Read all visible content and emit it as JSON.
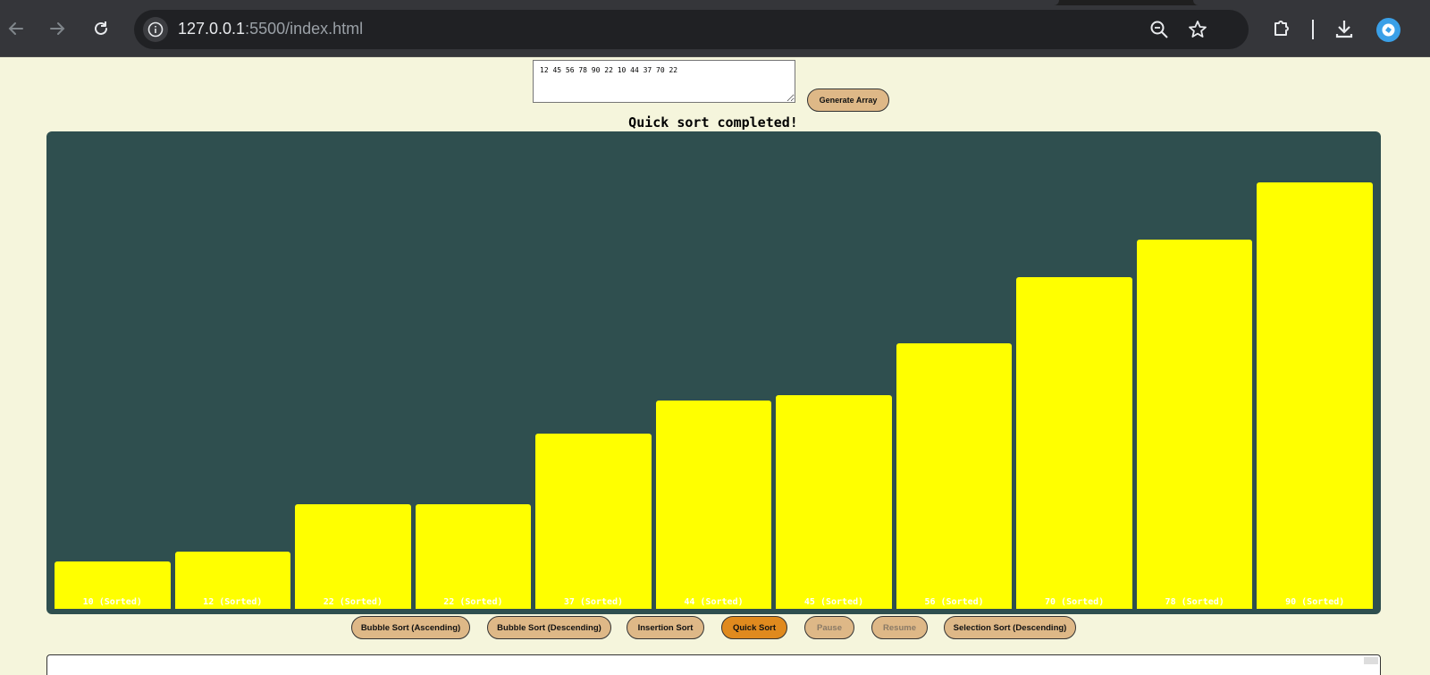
{
  "browser": {
    "url_host": "127.0.0.1",
    "url_rest": ":5500/index.html",
    "icons": [
      "back-arrow-icon",
      "forward-arrow-icon",
      "reload-icon",
      "info-icon",
      "zoom-icon",
      "star-icon",
      "extensions-icon",
      "download-icon",
      "profile-icon"
    ]
  },
  "input": {
    "value": "12 45 56 78 90 22 10 44 37 70 22"
  },
  "generate_label": "Generate Array",
  "status_text": "Quick sort completed!",
  "colors": {
    "page_bg": "#f5f5dc",
    "chart_bg": "#2f4f4f",
    "bar": "#ffff00",
    "button": "#deb887",
    "button_active": "#e08a1e"
  },
  "chart_data": {
    "type": "bar",
    "categories": [
      "10 (Sorted)",
      "12 (Sorted)",
      "22 (Sorted)",
      "22 (Sorted)",
      "37 (Sorted)",
      "44 (Sorted)",
      "45 (Sorted)",
      "56 (Sorted)",
      "70 (Sorted)",
      "78 (Sorted)",
      "90 (Sorted)"
    ],
    "values": [
      10,
      12,
      22,
      22,
      37,
      44,
      45,
      56,
      70,
      78,
      90
    ],
    "ylim": [
      0,
      100
    ],
    "title": "",
    "xlabel": "",
    "ylabel": ""
  },
  "controls": [
    {
      "label": "Bubble Sort (Ascending)",
      "state": "normal"
    },
    {
      "label": "Bubble Sort (Descending)",
      "state": "normal"
    },
    {
      "label": "Insertion Sort",
      "state": "normal"
    },
    {
      "label": "Quick Sort",
      "state": "active"
    },
    {
      "label": "Pause",
      "state": "disabled"
    },
    {
      "label": "Resume",
      "state": "disabled"
    },
    {
      "label": "Selection Sort (Descending)",
      "state": "normal"
    }
  ]
}
